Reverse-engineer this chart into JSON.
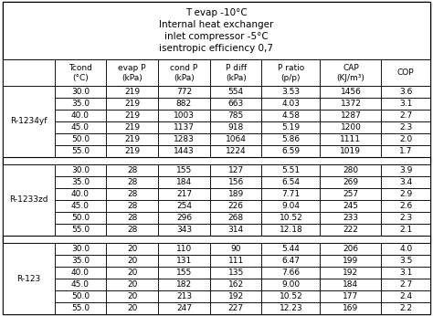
{
  "title_lines": [
    "T evap -10°C",
    "Internal heat exchanger",
    "inlet compressor -5°C",
    "isentropic efficiency 0,7"
  ],
  "col_headers_line1": [
    "Tcond",
    "evap P",
    "cond P",
    "P diff",
    "P ratio",
    "CAP",
    "COP"
  ],
  "col_headers_line2": [
    "(°C)",
    "(kPa)",
    "(kPa)",
    "(kPa)",
    "(p/p)",
    "(KJ/m³)",
    ""
  ],
  "refrigerants": [
    "R-1234yf",
    "R-1233zd",
    "R-123"
  ],
  "data": {
    "R-1234yf": [
      [
        30.0,
        219,
        772,
        554,
        3.53,
        1456,
        3.6
      ],
      [
        35.0,
        219,
        882,
        663,
        4.03,
        1372,
        3.1
      ],
      [
        40.0,
        219,
        1003,
        785,
        4.58,
        1287,
        2.7
      ],
      [
        45.0,
        219,
        1137,
        918,
        5.19,
        1200,
        2.3
      ],
      [
        50.0,
        219,
        1283,
        1064,
        5.86,
        1111,
        2.0
      ],
      [
        55.0,
        219,
        1443,
        1224,
        6.59,
        1019,
        1.7
      ]
    ],
    "R-1233zd": [
      [
        30.0,
        28,
        155,
        127,
        5.51,
        280,
        3.9
      ],
      [
        35.0,
        28,
        184,
        156,
        6.54,
        269,
        3.4
      ],
      [
        40.0,
        28,
        217,
        189,
        7.71,
        257,
        2.9
      ],
      [
        45.0,
        28,
        254,
        226,
        9.04,
        245,
        2.6
      ],
      [
        50.0,
        28,
        296,
        268,
        10.52,
        233,
        2.3
      ],
      [
        55.0,
        28,
        343,
        314,
        12.18,
        222,
        2.1
      ]
    ],
    "R-123": [
      [
        30.0,
        20,
        110,
        90,
        5.44,
        206,
        4.0
      ],
      [
        35.0,
        20,
        131,
        111,
        6.47,
        199,
        3.5
      ],
      [
        40.0,
        20,
        155,
        135,
        7.66,
        192,
        3.1
      ],
      [
        45.0,
        20,
        182,
        162,
        9.0,
        184,
        2.7
      ],
      [
        50.0,
        20,
        213,
        192,
        10.52,
        177,
        2.4
      ],
      [
        55.0,
        20,
        247,
        227,
        12.23,
        169,
        2.2
      ]
    ]
  },
  "bg_color": "#ffffff",
  "text_color": "#000000",
  "font_size": 6.5,
  "title_font_size": 7.5,
  "figsize": [
    4.74,
    3.46
  ],
  "dpi": 100
}
